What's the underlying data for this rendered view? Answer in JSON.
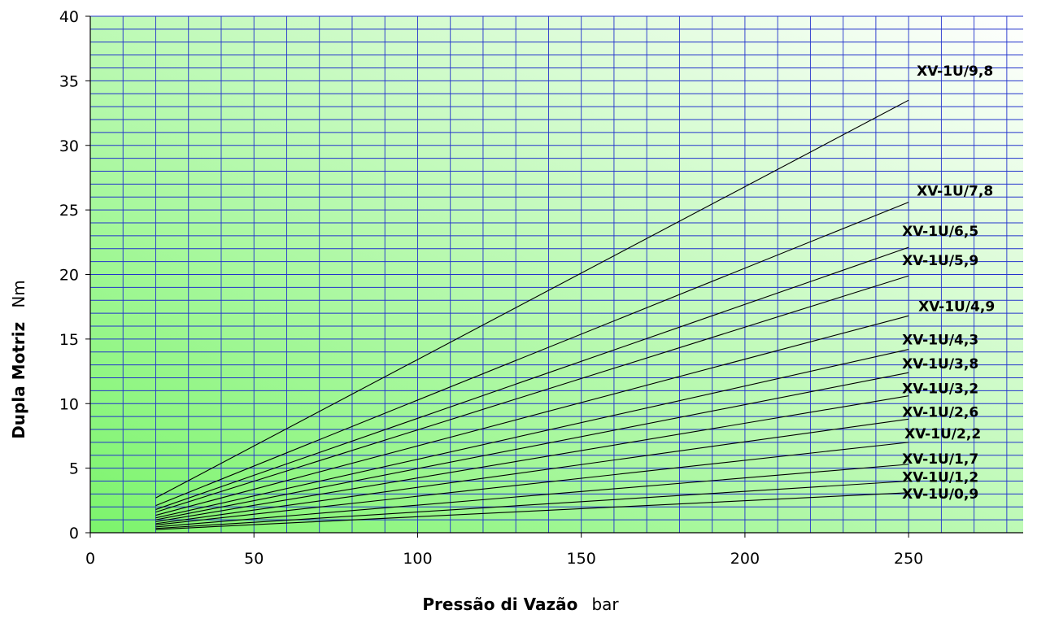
{
  "chart_data": {
    "type": "line",
    "xlabel": "Pressão di Vazão",
    "xunit": "bar",
    "ylabel": "Dupla Motriz",
    "yunit": "Nm",
    "xlim": [
      0,
      285
    ],
    "ylim": [
      0,
      40
    ],
    "x_ticks": [
      "0",
      "50",
      "100",
      "150",
      "200",
      "250"
    ],
    "y_ticks": [
      "0",
      "5",
      "10",
      "15",
      "20",
      "25",
      "30",
      "35",
      "40"
    ],
    "grid": true,
    "colors": {
      "line": "#000000",
      "grid": "#2233cc",
      "bg_dark": "#7cf46c",
      "bg_light": "#ffffff"
    },
    "series": [
      {
        "name": "XV-1U/9,8",
        "x": [
          20,
          250
        ],
        "y": [
          2.7,
          33.5
        ]
      },
      {
        "name": "XV-1U/7,8",
        "x": [
          20,
          250
        ],
        "y": [
          2.1,
          25.6
        ]
      },
      {
        "name": "XV-1U/6,5",
        "x": [
          20,
          250
        ],
        "y": [
          1.8,
          22.1
        ]
      },
      {
        "name": "XV-1U/5,9",
        "x": [
          20,
          250
        ],
        "y": [
          1.6,
          19.9
        ]
      },
      {
        "name": "XV-1U/4,9",
        "x": [
          20,
          250
        ],
        "y": [
          1.35,
          16.8
        ]
      },
      {
        "name": "XV-1U/4,3",
        "x": [
          20,
          250
        ],
        "y": [
          1.15,
          14.2
        ]
      },
      {
        "name": "XV-1U/3,8",
        "x": [
          20,
          250
        ],
        "y": [
          1.0,
          12.4
        ]
      },
      {
        "name": "XV-1U/3,2",
        "x": [
          20,
          250
        ],
        "y": [
          0.85,
          10.6
        ]
      },
      {
        "name": "XV-1U/2,6",
        "x": [
          20,
          250
        ],
        "y": [
          0.7,
          8.8
        ]
      },
      {
        "name": "XV-1U/2,2",
        "x": [
          20,
          250
        ],
        "y": [
          0.6,
          7.0
        ]
      },
      {
        "name": "XV-1U/1,7",
        "x": [
          20,
          250
        ],
        "y": [
          0.45,
          5.3
        ]
      },
      {
        "name": "XV-1U/1,2",
        "x": [
          20,
          250
        ],
        "y": [
          0.33,
          4.0
        ]
      },
      {
        "name": "XV-1U/0,9",
        "x": [
          20,
          250
        ],
        "y": [
          0.25,
          3.1
        ]
      }
    ]
  }
}
